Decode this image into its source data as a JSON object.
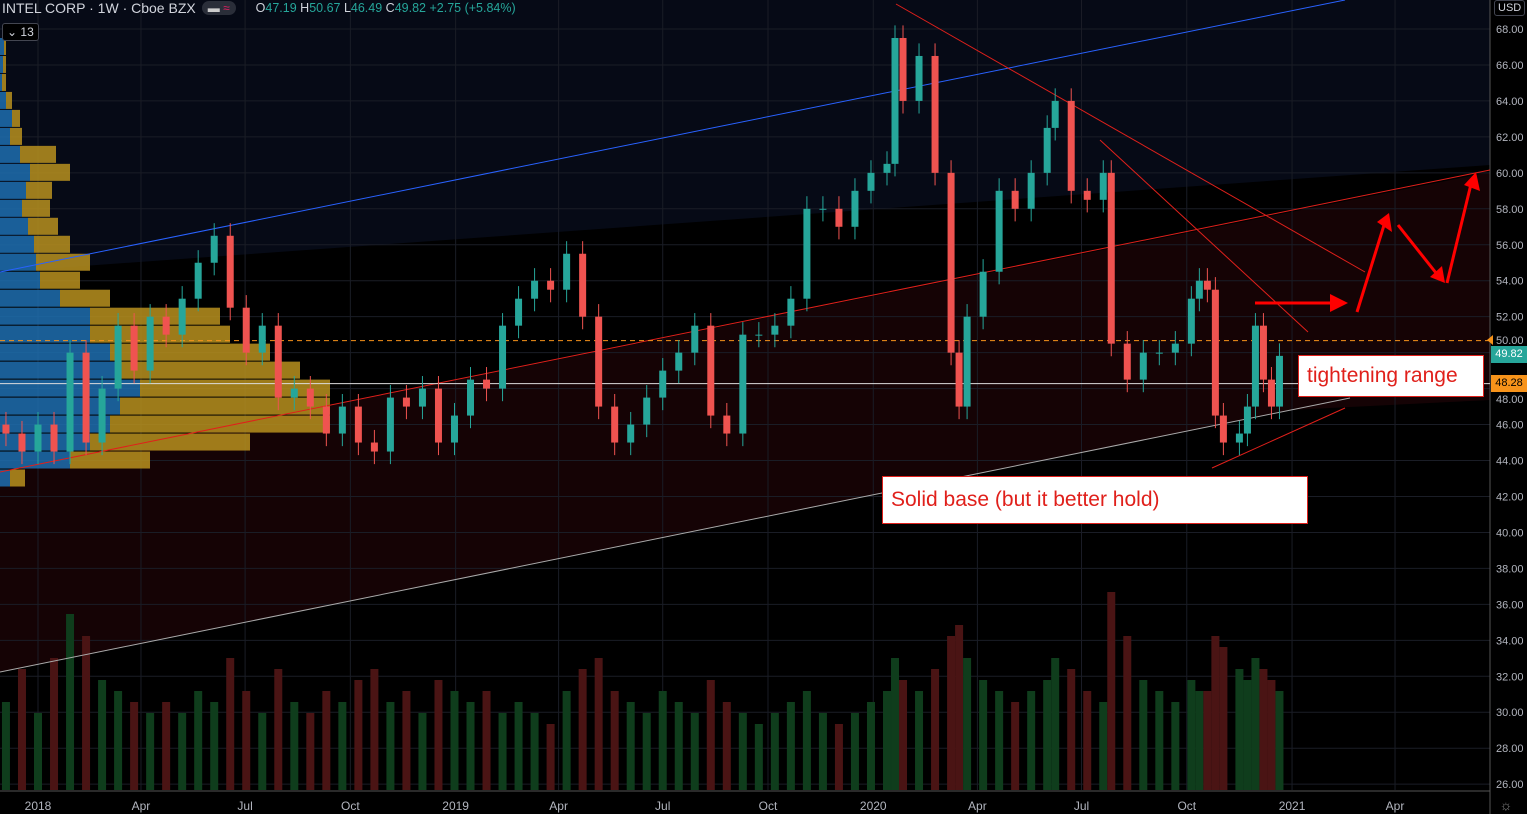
{
  "header": {
    "symbol": "INTEL CORP · 1W · Cboe BZX",
    "open_label": "O",
    "open": "47.19",
    "high_label": "H",
    "high": "50.67",
    "low_label": "L",
    "low": "46.49",
    "close_label": "C",
    "close": "49.82",
    "change": "+2.75 (+5.84%)",
    "indicator_count": "13",
    "currency": "USD",
    "pill_icons": [
      "minus-icon",
      "wave-icon"
    ]
  },
  "annotations": {
    "tightening": "tightening range",
    "solid_base": "Solid base (but it better hold)"
  },
  "price_tags": {
    "last": "49.82",
    "line": "48.28"
  },
  "colors": {
    "up": "#26a69a",
    "down": "#ef5350",
    "last_tag": "#26a69a",
    "line_tag": "#f7931a",
    "annotation": "#e0201b"
  },
  "chart_data": {
    "type": "candlestick",
    "title": "INTEL CORP · 1W · Cboe BZX",
    "ylim": [
      25.5,
      69.5
    ],
    "y_ticks": [
      "68.00",
      "66.00",
      "64.00",
      "62.00",
      "60.00",
      "58.00",
      "56.00",
      "54.00",
      "52.00",
      "50.00",
      "48.00",
      "46.00",
      "44.00",
      "42.00",
      "40.00",
      "38.00",
      "36.00",
      "34.00",
      "32.00",
      "30.00",
      "28.00",
      "26.00"
    ],
    "x_ticks": [
      [
        "2018",
        "2018-01-01"
      ],
      [
        "Apr",
        "2018-04-01"
      ],
      [
        "Jul",
        "2018-07-01"
      ],
      [
        "Oct",
        "2018-10-01"
      ],
      [
        "2019",
        "2019-01-01"
      ],
      [
        "Apr",
        "2019-04-01"
      ],
      [
        "Jul",
        "2019-07-01"
      ],
      [
        "Oct",
        "2019-10-01"
      ],
      [
        "2020",
        "2020-01-01"
      ],
      [
        "Apr",
        "2020-04-01"
      ],
      [
        "Jul",
        "2020-07-01"
      ],
      [
        "Oct",
        "2020-10-01"
      ],
      [
        "2021",
        "2021-01-01"
      ],
      [
        "Apr",
        "2021-04-01"
      ]
    ],
    "grid": true,
    "closes": [
      [
        "2017-12-04",
        45.5
      ],
      [
        "2017-12-18",
        44.5
      ],
      [
        "2018-01-01",
        46
      ],
      [
        "2018-01-15",
        44.5
      ],
      [
        "2018-01-29",
        50
      ],
      [
        "2018-02-12",
        45
      ],
      [
        "2018-02-26",
        48
      ],
      [
        "2018-03-12",
        51.5
      ],
      [
        "2018-03-26",
        49
      ],
      [
        "2018-04-09",
        52
      ],
      [
        "2018-04-23",
        51
      ],
      [
        "2018-05-07",
        53
      ],
      [
        "2018-05-21",
        55
      ],
      [
        "2018-06-04",
        56.5
      ],
      [
        "2018-06-18",
        52.5
      ],
      [
        "2018-07-02",
        50
      ],
      [
        "2018-07-16",
        51.5
      ],
      [
        "2018-07-30",
        47.5
      ],
      [
        "2018-08-13",
        48
      ],
      [
        "2018-08-27",
        47
      ],
      [
        "2018-09-10",
        45.5
      ],
      [
        "2018-09-24",
        47
      ],
      [
        "2018-10-08",
        45
      ],
      [
        "2018-10-22",
        44.5
      ],
      [
        "2018-11-05",
        47.5
      ],
      [
        "2018-11-19",
        47
      ],
      [
        "2018-12-03",
        48
      ],
      [
        "2018-12-17",
        45
      ],
      [
        "2018-12-31",
        46.5
      ],
      [
        "2019-01-14",
        48.5
      ],
      [
        "2019-01-28",
        48
      ],
      [
        "2019-02-11",
        51.5
      ],
      [
        "2019-02-25",
        53
      ],
      [
        "2019-03-11",
        54
      ],
      [
        "2019-03-25",
        53.5
      ],
      [
        "2019-04-08",
        55.5
      ],
      [
        "2019-04-22",
        52
      ],
      [
        "2019-05-06",
        47
      ],
      [
        "2019-05-20",
        45
      ],
      [
        "2019-06-03",
        46
      ],
      [
        "2019-06-17",
        47.5
      ],
      [
        "2019-07-01",
        49
      ],
      [
        "2019-07-15",
        50
      ],
      [
        "2019-07-29",
        51.5
      ],
      [
        "2019-08-12",
        46.5
      ],
      [
        "2019-08-26",
        45.5
      ],
      [
        "2019-09-09",
        51
      ],
      [
        "2019-09-23",
        51
      ],
      [
        "2019-10-07",
        51.5
      ],
      [
        "2019-10-21",
        53
      ],
      [
        "2019-11-04",
        58
      ],
      [
        "2019-11-18",
        58
      ],
      [
        "2019-12-02",
        57
      ],
      [
        "2019-12-16",
        59
      ],
      [
        "2019-12-30",
        60
      ],
      [
        "2020-01-13",
        60.5
      ],
      [
        "2020-01-20",
        67.5
      ],
      [
        "2020-01-27",
        64
      ],
      [
        "2020-02-10",
        66.5
      ],
      [
        "2020-02-24",
        60
      ],
      [
        "2020-03-09",
        50
      ],
      [
        "2020-03-16",
        47
      ],
      [
        "2020-03-23",
        52
      ],
      [
        "2020-04-06",
        54.5
      ],
      [
        "2020-04-20",
        59
      ],
      [
        "2020-05-04",
        58
      ],
      [
        "2020-05-18",
        60
      ],
      [
        "2020-06-01",
        62.5
      ],
      [
        "2020-06-08",
        64
      ],
      [
        "2020-06-22",
        59
      ],
      [
        "2020-07-06",
        58.5
      ],
      [
        "2020-07-20",
        60
      ],
      [
        "2020-07-27",
        50.5
      ],
      [
        "2020-08-10",
        48.5
      ],
      [
        "2020-08-24",
        50
      ],
      [
        "2020-09-07",
        50
      ],
      [
        "2020-09-21",
        50.5
      ],
      [
        "2020-10-05",
        53
      ],
      [
        "2020-10-12",
        54
      ],
      [
        "2020-10-19",
        53.5
      ],
      [
        "2020-10-26",
        46.5
      ],
      [
        "2020-11-02",
        45
      ],
      [
        "2020-11-16",
        45.5
      ],
      [
        "2020-11-23",
        47
      ],
      [
        "2020-11-30",
        51.5
      ],
      [
        "2020-12-07",
        48.5
      ],
      [
        "2020-12-14",
        47
      ],
      [
        "2020-12-21",
        49.82
      ]
    ],
    "volume_relative": [
      40,
      55,
      35,
      60,
      80,
      70,
      50,
      45,
      40,
      35,
      40,
      35,
      45,
      40,
      60,
      45,
      35,
      55,
      40,
      35,
      45,
      40,
      50,
      55,
      40,
      45,
      35,
      50,
      45,
      40,
      45,
      35,
      40,
      35,
      30,
      45,
      55,
      60,
      45,
      40,
      35,
      45,
      40,
      35,
      50,
      40,
      35,
      30,
      35,
      40,
      45,
      35,
      30,
      35,
      40,
      45,
      60,
      50,
      45,
      55,
      70,
      75,
      60,
      50,
      45,
      40,
      45,
      50,
      60,
      55,
      45,
      40,
      90,
      70,
      50,
      45,
      40,
      50,
      45,
      45,
      70,
      65,
      55,
      50,
      60,
      55,
      50,
      45
    ],
    "volume_profile": [
      [
        67,
        4,
        2
      ],
      [
        66,
        3,
        3
      ],
      [
        65,
        2,
        4
      ],
      [
        64,
        6,
        6
      ],
      [
        63,
        12,
        8
      ],
      [
        62,
        10,
        12
      ],
      [
        61,
        20,
        36
      ],
      [
        60,
        30,
        40
      ],
      [
        59,
        26,
        26
      ],
      [
        58,
        22,
        28
      ],
      [
        57,
        28,
        30
      ],
      [
        56,
        34,
        36
      ],
      [
        55,
        36,
        54
      ],
      [
        54,
        40,
        40
      ],
      [
        53,
        60,
        50
      ],
      [
        52,
        90,
        130
      ],
      [
        51,
        90,
        140
      ],
      [
        50,
        110,
        160
      ],
      [
        49,
        120,
        180
      ],
      [
        48,
        140,
        190
      ],
      [
        47,
        120,
        210
      ],
      [
        46,
        110,
        220
      ],
      [
        45,
        90,
        160
      ],
      [
        44,
        70,
        80
      ],
      [
        43,
        10,
        15
      ]
    ]
  }
}
